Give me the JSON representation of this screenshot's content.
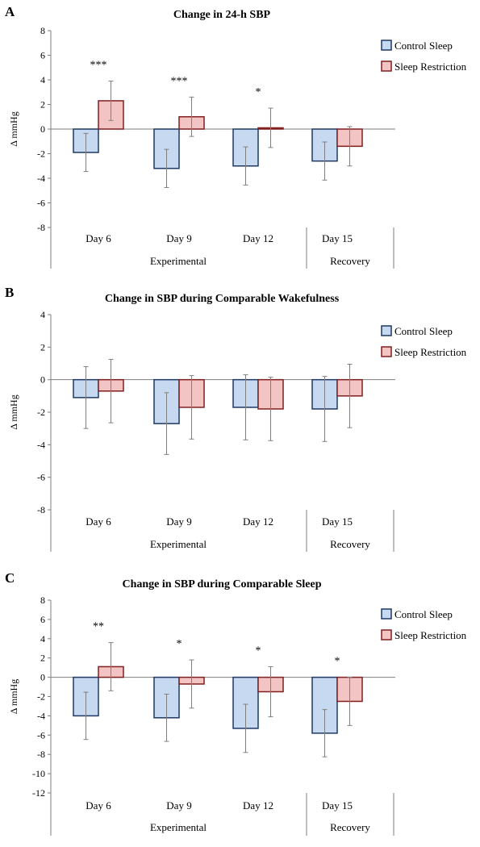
{
  "colors": {
    "control_fill": "#c6d9f1",
    "control_stroke": "#1f3864",
    "restriction_fill": "#f2c4c4",
    "restriction_stroke": "#7f1f1f",
    "error_bar": "#7f7f7f",
    "axis": "#7f7f7f"
  },
  "chart_data": [
    {
      "type": "bar",
      "panel": "A",
      "title": "Change in 24-h SBP",
      "ylabel": "Δ mmHg",
      "ylim": [
        -8,
        8
      ],
      "yticks": [
        "8",
        "6",
        "4",
        "2",
        "0",
        "-2",
        "-4",
        "-6",
        "-8"
      ],
      "categories": [
        "Day 6",
        "Day 9",
        "Day 12",
        "Day 15"
      ],
      "groups": [
        {
          "label": "Experimental",
          "span": [
            0,
            2
          ]
        },
        {
          "label": "Recovery",
          "span": [
            3,
            3
          ]
        }
      ],
      "series": [
        {
          "name": "Control Sleep",
          "values": [
            -1.9,
            -3.2,
            -3.0,
            -2.6
          ],
          "errors": [
            1.55,
            1.55,
            1.55,
            1.55
          ]
        },
        {
          "name": "Sleep Restriction",
          "values": [
            2.3,
            1.0,
            0.1,
            -1.4
          ],
          "errors": [
            1.6,
            1.6,
            1.6,
            1.6
          ]
        }
      ],
      "annotations": [
        "***",
        "***",
        "*",
        ""
      ],
      "legend": "top-right",
      "grid": false
    },
    {
      "type": "bar",
      "panel": "B",
      "title": "Change in SBP during Comparable Wakefulness",
      "ylabel": "Δ mmHg",
      "ylim": [
        -8,
        4
      ],
      "yticks": [
        "4",
        "2",
        "0",
        "-2",
        "-4",
        "-6",
        "-8"
      ],
      "categories": [
        "Day 6",
        "Day 9",
        "Day 12",
        "Day 15"
      ],
      "groups": [
        {
          "label": "Experimental",
          "span": [
            0,
            2
          ]
        },
        {
          "label": "Recovery",
          "span": [
            3,
            3
          ]
        }
      ],
      "series": [
        {
          "name": "Control Sleep",
          "values": [
            -1.1,
            -2.7,
            -1.7,
            -1.8
          ],
          "errors": [
            1.9,
            1.9,
            2.0,
            2.0
          ]
        },
        {
          "name": "Sleep Restriction",
          "values": [
            -0.7,
            -1.7,
            -1.8,
            -1.0
          ],
          "errors": [
            1.95,
            1.95,
            1.95,
            1.95
          ]
        }
      ],
      "annotations": [
        "",
        "",
        "",
        ""
      ],
      "legend": "top-right",
      "grid": false
    },
    {
      "type": "bar",
      "panel": "C",
      "title": "Change in SBP during Comparable Sleep",
      "ylabel": "Δ mmHg",
      "ylim": [
        -12,
        8
      ],
      "yticks": [
        "8",
        "6",
        "4",
        "2",
        "0",
        "-2",
        "-4",
        "-6",
        "-8",
        "-10",
        "-12"
      ],
      "categories": [
        "Day 6",
        "Day 9",
        "Day 12",
        "Day 15"
      ],
      "groups": [
        {
          "label": "Experimental",
          "span": [
            0,
            2
          ]
        },
        {
          "label": "Recovery",
          "span": [
            3,
            3
          ]
        }
      ],
      "series": [
        {
          "name": "Control Sleep",
          "values": [
            -4.0,
            -4.2,
            -5.3,
            -5.8
          ],
          "errors": [
            2.45,
            2.45,
            2.5,
            2.45
          ]
        },
        {
          "name": "Sleep Restriction",
          "values": [
            1.1,
            -0.7,
            -1.5,
            -2.5
          ],
          "errors": [
            2.5,
            2.5,
            2.6,
            2.5
          ]
        }
      ],
      "annotations": [
        "**",
        "*",
        "*",
        "*"
      ],
      "legend": "top-right",
      "grid": false
    }
  ]
}
